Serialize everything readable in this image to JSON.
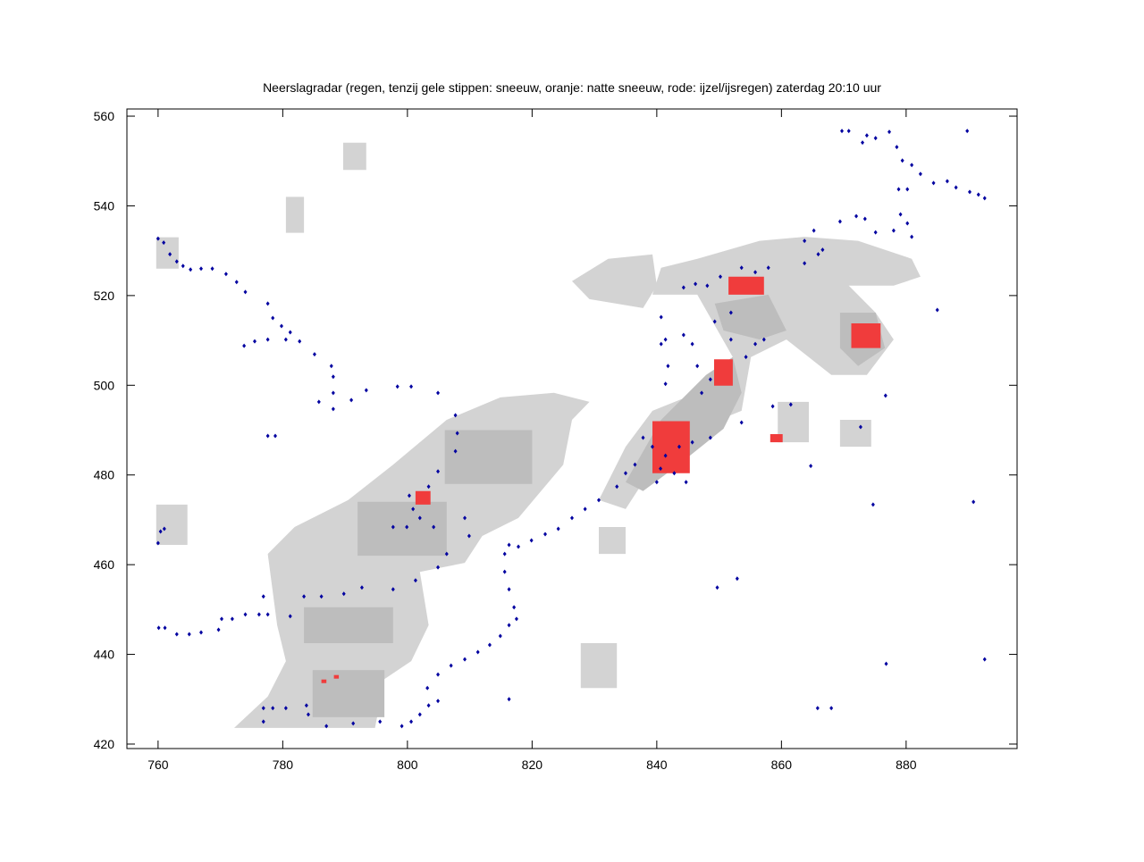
{
  "chart_data": {
    "type": "scatter",
    "title": "Neerslagradar (regen, tenzij gele stippen: sneeuw, oranje: natte sneeuw, rode: ijzel/ijsregen) zaterdag 20:10 uur",
    "xlim": [
      755,
      897.8
    ],
    "ylim": [
      419,
      561.6
    ],
    "xticks": [
      760,
      780,
      800,
      820,
      840,
      860,
      880
    ],
    "yticks": [
      420,
      440,
      460,
      480,
      500,
      520,
      540,
      560
    ],
    "regions": [
      {
        "color": "#d3d3d3",
        "x": [
          772.2,
          777.6,
          780.5,
          779.1,
          777.6,
          781.9,
          790.5,
          797.7,
          806.3,
          814.9,
          823.5,
          829.2,
          826.4,
          825.0,
          817.8,
          812.0,
          809.2,
          802.0,
          803.4,
          800.6,
          796.3,
          794.8
        ],
        "y": [
          423.6,
          430.6,
          438.5,
          446.5,
          462.4,
          468.4,
          474.4,
          482.3,
          492.3,
          497.3,
          498.3,
          496.3,
          492.3,
          482.3,
          470.4,
          466.4,
          460.4,
          458.4,
          446.5,
          438.5,
          434.5,
          423.6
        ]
      },
      {
        "color": "#d3d3d3",
        "x": [
          830.7,
          835.0,
          839.3,
          846.5,
          852.2,
          846.5,
          839.3,
          840.7,
          846.5,
          856.5,
          863.7,
          872.3,
          880.9,
          882.3,
          878.0,
          870.8,
          875.1,
          878.0,
          873.7,
          868.0,
          860.8,
          855.1,
          853.6,
          846.5,
          837.8,
          835.0
        ],
        "y": [
          474.4,
          486.3,
          494.3,
          498.3,
          506.3,
          520.2,
          520.2,
          526.2,
          528.2,
          532.2,
          533.1,
          532.2,
          528.2,
          524.2,
          522.2,
          522.2,
          516.2,
          510.2,
          502.3,
          502.3,
          510.2,
          506.3,
          494.3,
          490.3,
          478.4,
          472.4
        ]
      },
      {
        "color": "#d3d3d3",
        "x": [
          826.4,
          832.2,
          839.3,
          840.0,
          837.8,
          829.2
        ],
        "y": [
          523.2,
          528.2,
          529.2,
          522.2,
          517.2,
          519.2
        ]
      },
      {
        "color": "#d3d3d3",
        "x": [
          827.8,
          833.6,
          833.6,
          827.8
        ],
        "y": [
          432.5,
          432.5,
          442.5,
          442.5
        ]
      },
      {
        "color": "#d3d3d3",
        "x": [
          859.4,
          864.4,
          864.4,
          859.4
        ],
        "y": [
          487.3,
          487.3,
          496.3,
          496.3
        ]
      },
      {
        "color": "#d3d3d3",
        "x": [
          759.7,
          763.3,
          763.3,
          759.7
        ],
        "y": [
          526,
          526,
          533,
          533
        ]
      },
      {
        "color": "#d3d3d3",
        "x": [
          780.5,
          783.4,
          783.4,
          780.5
        ],
        "y": [
          534,
          534,
          542,
          542
        ]
      },
      {
        "color": "#d3d3d3",
        "x": [
          789.7,
          793.4,
          793.4,
          789.7
        ],
        "y": [
          548,
          548,
          554.1,
          554.1
        ]
      },
      {
        "color": "#d3d3d3",
        "x": [
          830.7,
          835,
          835,
          830.7
        ],
        "y": [
          462.4,
          462.4,
          468.4,
          468.4
        ]
      },
      {
        "color": "#d3d3d3",
        "x": [
          869.4,
          874.4,
          874.4,
          869.4
        ],
        "y": [
          486.3,
          486.3,
          492.3,
          492.3
        ]
      },
      {
        "color": "#d3d3d3",
        "x": [
          759.7,
          764.7,
          764.7,
          759.7
        ],
        "y": [
          464.4,
          464.4,
          473.4,
          473.4
        ]
      },
      {
        "color": "#bdbdbd",
        "x": [
          784.8,
          796.3,
          796.3,
          784.8
        ],
        "y": [
          426,
          426,
          436.5,
          436.5
        ]
      },
      {
        "color": "#bdbdbd",
        "x": [
          783.4,
          797.7,
          797.7,
          783.4
        ],
        "y": [
          442.5,
          442.5,
          450.5,
          450.5
        ]
      },
      {
        "color": "#bdbdbd",
        "x": [
          792,
          806.3,
          806.3,
          792
        ],
        "y": [
          462,
          462,
          474,
          474
        ]
      },
      {
        "color": "#bdbdbd",
        "x": [
          806,
          820,
          820,
          806
        ],
        "y": [
          478,
          478,
          490,
          490
        ]
      },
      {
        "color": "#bdbdbd",
        "x": [
          835,
          840.7,
          847.9,
          852.2,
          853.6,
          850.7,
          843.5,
          837.8
        ],
        "y": [
          478.4,
          492.3,
          502.3,
          506.3,
          498.3,
          490.3,
          482.3,
          476.4
        ]
      },
      {
        "color": "#bdbdbd",
        "x": [
          849.3,
          857.9,
          860.8,
          856.5,
          850.7
        ],
        "y": [
          518.2,
          520.2,
          512.2,
          510.2,
          512.2
        ]
      },
      {
        "color": "#bdbdbd",
        "x": [
          869.4,
          875.1,
          876.6,
          872.3,
          869.4
        ],
        "y": [
          516.2,
          516.2,
          508.3,
          504.3,
          508.3
        ]
      },
      {
        "color": "#f03c3c",
        "x": [
          851.5,
          857.2,
          857.2,
          851.5
        ],
        "y": [
          520.2,
          520.2,
          524.2,
          524.2
        ]
      },
      {
        "color": "#f03c3c",
        "x": [
          871.2,
          875.9,
          875.9,
          871.2
        ],
        "y": [
          508.3,
          508.3,
          513.8,
          513.8
        ]
      },
      {
        "color": "#f03c3c",
        "x": [
          849.2,
          852.2,
          852.2,
          849.2
        ],
        "y": [
          499.9,
          499.9,
          505.8,
          505.8
        ]
      },
      {
        "color": "#f03c3c",
        "x": [
          839.3,
          845.3,
          845.3,
          839.3
        ],
        "y": [
          480.4,
          480.4,
          492,
          492
        ]
      },
      {
        "color": "#f03c3c",
        "x": [
          801.3,
          803.7,
          803.7,
          801.3
        ],
        "y": [
          473.4,
          473.4,
          476.4,
          476.4
        ]
      },
      {
        "color": "#f03c3c",
        "x": [
          858.2,
          860.2,
          860.2,
          858.2
        ],
        "y": [
          487.3,
          487.3,
          489.1,
          489.1
        ]
      },
      {
        "color": "#f03c3c",
        "x": [
          786.2,
          787,
          787,
          786.2
        ],
        "y": [
          433.6,
          433.6,
          434.4,
          434.4
        ]
      },
      {
        "color": "#f03c3c",
        "x": [
          788.2,
          789,
          789,
          788.2
        ],
        "y": [
          434.6,
          434.6,
          435.4,
          435.4
        ]
      }
    ],
    "series": [
      {
        "color": "#0000a0",
        "x": [
          760,
          760.9,
          761.9,
          763,
          764,
          765.2,
          766.9,
          768.7,
          770.9,
          772.6,
          774,
          777.6,
          778.4,
          779.8,
          781.2,
          782.7,
          785.1,
          787.8,
          788.1,
          788.1,
          788.1,
          773.8,
          775.5,
          777.6,
          780.5,
          785.8,
          791,
          793.4,
          777.6,
          778.8,
          798.4,
          800.6,
          804.9,
          807.7,
          808,
          807.7,
          804.9,
          803.4,
          800.3,
          800.9,
          802,
          797.7,
          799.9,
          804.2,
          809.2,
          809.9,
          806.3,
          804.9,
          801.3,
          792.7,
          797.7,
          789.8,
          786.2,
          783.4,
          776.9,
          781.2,
          777.6,
          776.2,
          774,
          771.9,
          770.2,
          769.7,
          766.9,
          765,
          763,
          760.1,
          761.1,
          760,
          760.4,
          761,
          776.9,
          778.4,
          780.5,
          776.9,
          783.8,
          784.1,
          787,
          791.3,
          795.6,
          799.1,
          800.6,
          802,
          803.4,
          804.9,
          803.2,
          804.9,
          807,
          809.2,
          811.3,
          813.2,
          814.9,
          816.3,
          817.5,
          817.1,
          816.3,
          815.6,
          815.6,
          816.3,
          817.8,
          819.9,
          822.1,
          824.2,
          826.4,
          828.5,
          830.7,
          833.6,
          835,
          836.5,
          816.3,
          837.8,
          839.3,
          841.4,
          843.6,
          845.7,
          848.6,
          840.6,
          842.8,
          844.7,
          840,
          841.4,
          841.8,
          840.7,
          840.7,
          841.4,
          844.3,
          845.7,
          846.5,
          848.6,
          847.2,
          849.3,
          851.9,
          851.9,
          854.3,
          855.8,
          857.2,
          848.1,
          850.2,
          853.6,
          855.8,
          857.9,
          844.3,
          846.2,
          863.7,
          863.7,
          865.9,
          866.6,
          865.2,
          869.4,
          872,
          873.4,
          875.1,
          878,
          879.1,
          880.9,
          880.2,
          869.7,
          870.8,
          873,
          873.7,
          875.1,
          877.3,
          878.5,
          879.4,
          880.9,
          882.3,
          884.4,
          886.6,
          888,
          890.2,
          891.6,
          892.6,
          889.8,
          880.2,
          878.8,
          885,
          864.7,
          872.7,
          874.7,
          876.7,
          890.8,
          849.7,
          852.9,
          876.8,
          892.6,
          865.8,
          868,
          853.6,
          858.6,
          861.5
        ],
        "y": [
          532.7,
          531.8,
          529.2,
          527.6,
          526.6,
          525.8,
          526,
          526,
          524.8,
          523,
          520.8,
          518.2,
          515,
          513.2,
          511.8,
          509.8,
          506.9,
          504.3,
          501.9,
          498.3,
          494.7,
          508.8,
          509.8,
          510.2,
          510.2,
          496.3,
          496.7,
          498.9,
          488.7,
          488.7,
          499.7,
          499.7,
          498.3,
          493.3,
          489.3,
          485.3,
          480.8,
          477.4,
          475.4,
          472.4,
          470.4,
          468.4,
          468.4,
          468.4,
          470.4,
          466.4,
          462.4,
          459.4,
          456.5,
          454.9,
          454.5,
          453.5,
          452.9,
          452.9,
          452.9,
          448.5,
          448.9,
          448.9,
          448.9,
          447.9,
          447.9,
          445.5,
          444.9,
          444.5,
          444.5,
          445.9,
          445.9,
          464.8,
          467.4,
          468,
          428,
          428,
          428,
          425,
          428.6,
          426.6,
          424,
          424.6,
          425,
          424,
          425,
          426.6,
          428.6,
          429.6,
          432.5,
          435.5,
          437.5,
          438.9,
          440.5,
          442.1,
          444.1,
          446.5,
          447.9,
          450.5,
          454.5,
          458.4,
          462.4,
          464.4,
          464,
          465.4,
          466.8,
          468,
          470.4,
          472.4,
          474.4,
          477.4,
          480.4,
          482.3,
          430,
          488.3,
          486.3,
          484.3,
          486.3,
          487.3,
          488.3,
          481.4,
          480.4,
          478.4,
          478.4,
          500.3,
          504.3,
          509.2,
          515.2,
          510.2,
          511.2,
          509.2,
          504.3,
          501.3,
          498.3,
          514.2,
          516.2,
          510.2,
          506.3,
          509.2,
          510.2,
          522.2,
          524.2,
          526.2,
          525.2,
          526.2,
          521.8,
          522.6,
          532.2,
          527.2,
          529.2,
          530.2,
          534.5,
          536.5,
          537.7,
          537.1,
          534.1,
          534.5,
          538.1,
          533.1,
          536.1,
          556.7,
          556.7,
          554.1,
          555.7,
          555.1,
          556.5,
          553.1,
          550.1,
          549.1,
          547.1,
          545.1,
          545.5,
          544.1,
          543.1,
          542.5,
          541.7,
          556.7,
          543.7,
          543.7,
          516.8,
          482,
          490.7,
          473.4,
          497.7,
          474,
          454.9,
          456.9,
          437.9,
          438.9,
          428,
          428,
          491.7,
          495.3,
          495.7
        ]
      }
    ]
  }
}
